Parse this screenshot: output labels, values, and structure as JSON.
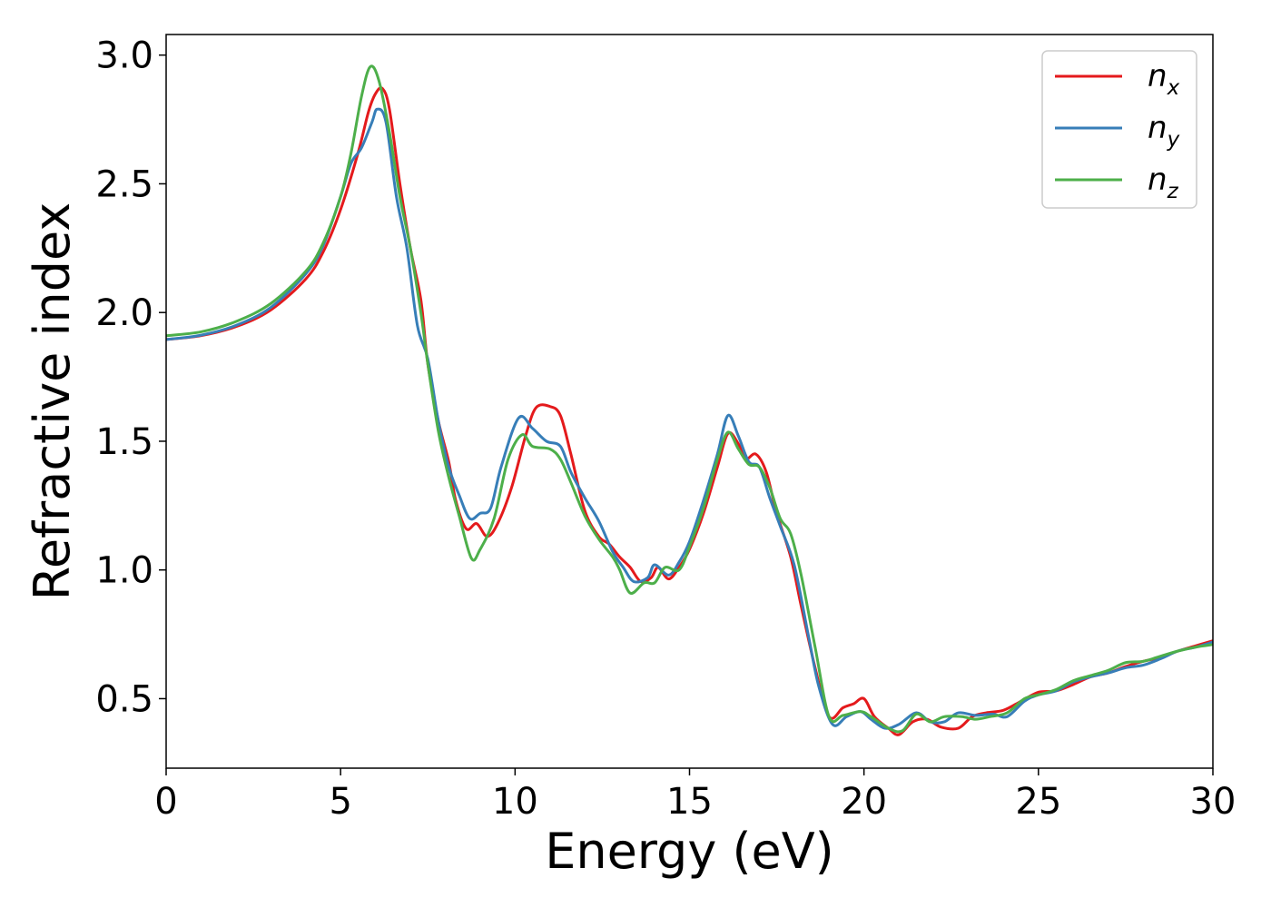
{
  "chart_data": {
    "type": "line",
    "title": "",
    "xlabel": "Energy (eV)",
    "ylabel": "Refractive index",
    "xlim": [
      0,
      30
    ],
    "ylim": [
      0.23,
      3.08
    ],
    "xticks": [
      0,
      5,
      10,
      15,
      20,
      25,
      30
    ],
    "xtick_labels": [
      "0",
      "5",
      "10",
      "15",
      "20",
      "25",
      "30"
    ],
    "yticks": [
      0.5,
      1.0,
      1.5,
      2.0,
      2.5,
      3.0
    ],
    "ytick_labels": [
      "0.5",
      "1.0",
      "1.5",
      "2.0",
      "2.5",
      "3.0"
    ],
    "grid": false,
    "legend_position": "top-right",
    "series": [
      {
        "name": "n_x",
        "legend_base": "n",
        "legend_sub": "x",
        "color": "#e41a1c",
        "points": [
          [
            0,
            1.895
          ],
          [
            1,
            1.91
          ],
          [
            2,
            1.945
          ],
          [
            3,
            2.01
          ],
          [
            4,
            2.13
          ],
          [
            4.5,
            2.235
          ],
          [
            5,
            2.4
          ],
          [
            5.5,
            2.62
          ],
          [
            5.8,
            2.78
          ],
          [
            6.0,
            2.85
          ],
          [
            6.2,
            2.87
          ],
          [
            6.4,
            2.79
          ],
          [
            6.7,
            2.5
          ],
          [
            7.0,
            2.25
          ],
          [
            7.3,
            2.05
          ],
          [
            7.5,
            1.8
          ],
          [
            7.8,
            1.58
          ],
          [
            8.1,
            1.42
          ],
          [
            8.3,
            1.27
          ],
          [
            8.6,
            1.16
          ],
          [
            8.9,
            1.18
          ],
          [
            9.2,
            1.13
          ],
          [
            9.5,
            1.18
          ],
          [
            9.9,
            1.32
          ],
          [
            10.3,
            1.52
          ],
          [
            10.6,
            1.63
          ],
          [
            11.0,
            1.635
          ],
          [
            11.3,
            1.6
          ],
          [
            11.6,
            1.45
          ],
          [
            12.0,
            1.23
          ],
          [
            12.4,
            1.13
          ],
          [
            12.7,
            1.1
          ],
          [
            13.0,
            1.05
          ],
          [
            13.3,
            1.01
          ],
          [
            13.6,
            0.955
          ],
          [
            13.9,
            0.97
          ],
          [
            14.1,
            1.01
          ],
          [
            14.4,
            0.965
          ],
          [
            14.7,
            1.01
          ],
          [
            15.0,
            1.08
          ],
          [
            15.4,
            1.22
          ],
          [
            15.8,
            1.4
          ],
          [
            16.1,
            1.53
          ],
          [
            16.4,
            1.49
          ],
          [
            16.6,
            1.43
          ],
          [
            16.9,
            1.45
          ],
          [
            17.2,
            1.38
          ],
          [
            17.5,
            1.22
          ],
          [
            17.9,
            1.05
          ],
          [
            18.2,
            0.86
          ],
          [
            18.6,
            0.62
          ],
          [
            19.0,
            0.43
          ],
          [
            19.4,
            0.465
          ],
          [
            19.7,
            0.48
          ],
          [
            20.0,
            0.5
          ],
          [
            20.3,
            0.43
          ],
          [
            20.7,
            0.385
          ],
          [
            21.0,
            0.36
          ],
          [
            21.4,
            0.41
          ],
          [
            21.8,
            0.42
          ],
          [
            22.2,
            0.39
          ],
          [
            22.7,
            0.385
          ],
          [
            23.1,
            0.43
          ],
          [
            23.5,
            0.445
          ],
          [
            24.0,
            0.455
          ],
          [
            24.5,
            0.49
          ],
          [
            25.0,
            0.525
          ],
          [
            25.5,
            0.53
          ],
          [
            26.0,
            0.555
          ],
          [
            26.5,
            0.585
          ],
          [
            27.0,
            0.6
          ],
          [
            27.5,
            0.625
          ],
          [
            28.0,
            0.645
          ],
          [
            28.5,
            0.66
          ],
          [
            29.0,
            0.685
          ],
          [
            29.5,
            0.705
          ],
          [
            30.0,
            0.725
          ]
        ]
      },
      {
        "name": "n_y",
        "legend_base": "n",
        "legend_sub": "y",
        "color": "#377eb8",
        "points": [
          [
            0,
            1.895
          ],
          [
            1,
            1.912
          ],
          [
            2,
            1.95
          ],
          [
            3,
            2.02
          ],
          [
            4,
            2.15
          ],
          [
            4.5,
            2.26
          ],
          [
            5,
            2.45
          ],
          [
            5.3,
            2.58
          ],
          [
            5.6,
            2.64
          ],
          [
            5.9,
            2.74
          ],
          [
            6.05,
            2.79
          ],
          [
            6.3,
            2.74
          ],
          [
            6.6,
            2.45
          ],
          [
            6.9,
            2.25
          ],
          [
            7.2,
            1.95
          ],
          [
            7.5,
            1.82
          ],
          [
            7.8,
            1.58
          ],
          [
            8.1,
            1.4
          ],
          [
            8.4,
            1.29
          ],
          [
            8.7,
            1.2
          ],
          [
            9.0,
            1.22
          ],
          [
            9.3,
            1.24
          ],
          [
            9.6,
            1.4
          ],
          [
            10.1,
            1.59
          ],
          [
            10.5,
            1.55
          ],
          [
            10.9,
            1.5
          ],
          [
            11.3,
            1.48
          ],
          [
            11.6,
            1.38
          ],
          [
            12.0,
            1.28
          ],
          [
            12.4,
            1.19
          ],
          [
            12.8,
            1.07
          ],
          [
            13.1,
            1.01
          ],
          [
            13.4,
            0.955
          ],
          [
            13.8,
            0.97
          ],
          [
            14.0,
            1.02
          ],
          [
            14.4,
            0.98
          ],
          [
            14.7,
            1.03
          ],
          [
            15.0,
            1.11
          ],
          [
            15.4,
            1.27
          ],
          [
            15.8,
            1.45
          ],
          [
            16.1,
            1.6
          ],
          [
            16.4,
            1.52
          ],
          [
            16.7,
            1.42
          ],
          [
            17.0,
            1.4
          ],
          [
            17.3,
            1.28
          ],
          [
            17.6,
            1.17
          ],
          [
            18.0,
            1.02
          ],
          [
            18.4,
            0.75
          ],
          [
            18.7,
            0.55
          ],
          [
            19.1,
            0.4
          ],
          [
            19.5,
            0.43
          ],
          [
            19.9,
            0.45
          ],
          [
            20.2,
            0.42
          ],
          [
            20.6,
            0.385
          ],
          [
            21.0,
            0.4
          ],
          [
            21.5,
            0.445
          ],
          [
            21.9,
            0.41
          ],
          [
            22.3,
            0.41
          ],
          [
            22.7,
            0.445
          ],
          [
            23.2,
            0.435
          ],
          [
            23.7,
            0.44
          ],
          [
            24.1,
            0.43
          ],
          [
            24.6,
            0.49
          ],
          [
            25.0,
            0.515
          ],
          [
            25.5,
            0.53
          ],
          [
            26.0,
            0.565
          ],
          [
            26.5,
            0.585
          ],
          [
            27.0,
            0.6
          ],
          [
            27.5,
            0.62
          ],
          [
            28.0,
            0.63
          ],
          [
            28.5,
            0.655
          ],
          [
            29.0,
            0.685
          ],
          [
            29.5,
            0.7
          ],
          [
            30.0,
            0.72
          ]
        ]
      },
      {
        "name": "n_z",
        "legend_base": "n",
        "legend_sub": "z",
        "color": "#4daf4a",
        "points": [
          [
            0,
            1.91
          ],
          [
            1,
            1.925
          ],
          [
            2,
            1.965
          ],
          [
            3,
            2.035
          ],
          [
            4,
            2.16
          ],
          [
            4.5,
            2.27
          ],
          [
            5,
            2.45
          ],
          [
            5.3,
            2.62
          ],
          [
            5.6,
            2.84
          ],
          [
            5.85,
            2.955
          ],
          [
            6.1,
            2.9
          ],
          [
            6.4,
            2.7
          ],
          [
            6.7,
            2.45
          ],
          [
            7.0,
            2.25
          ],
          [
            7.3,
            2.0
          ],
          [
            7.5,
            1.8
          ],
          [
            7.8,
            1.54
          ],
          [
            8.1,
            1.36
          ],
          [
            8.4,
            1.21
          ],
          [
            8.75,
            1.045
          ],
          [
            9.0,
            1.08
          ],
          [
            9.4,
            1.2
          ],
          [
            9.8,
            1.43
          ],
          [
            10.2,
            1.525
          ],
          [
            10.5,
            1.48
          ],
          [
            11.0,
            1.47
          ],
          [
            11.3,
            1.43
          ],
          [
            11.6,
            1.34
          ],
          [
            12.0,
            1.21
          ],
          [
            12.4,
            1.12
          ],
          [
            12.8,
            1.05
          ],
          [
            13.0,
            1.0
          ],
          [
            13.3,
            0.91
          ],
          [
            13.7,
            0.95
          ],
          [
            14.0,
            0.95
          ],
          [
            14.3,
            1.01
          ],
          [
            14.7,
            1.0
          ],
          [
            15.0,
            1.09
          ],
          [
            15.4,
            1.24
          ],
          [
            15.8,
            1.43
          ],
          [
            16.1,
            1.535
          ],
          [
            16.4,
            1.47
          ],
          [
            16.7,
            1.41
          ],
          [
            17.0,
            1.4
          ],
          [
            17.3,
            1.32
          ],
          [
            17.6,
            1.2
          ],
          [
            17.9,
            1.14
          ],
          [
            18.2,
            0.98
          ],
          [
            18.6,
            0.7
          ],
          [
            19.0,
            0.43
          ],
          [
            19.4,
            0.435
          ],
          [
            19.9,
            0.45
          ],
          [
            20.2,
            0.43
          ],
          [
            20.7,
            0.385
          ],
          [
            21.1,
            0.375
          ],
          [
            21.5,
            0.44
          ],
          [
            21.9,
            0.41
          ],
          [
            22.3,
            0.43
          ],
          [
            22.8,
            0.43
          ],
          [
            23.2,
            0.42
          ],
          [
            23.6,
            0.43
          ],
          [
            24.1,
            0.445
          ],
          [
            24.6,
            0.5
          ],
          [
            25.0,
            0.515
          ],
          [
            25.5,
            0.535
          ],
          [
            26.0,
            0.57
          ],
          [
            26.5,
            0.59
          ],
          [
            27.0,
            0.61
          ],
          [
            27.5,
            0.64
          ],
          [
            28.0,
            0.645
          ],
          [
            28.5,
            0.665
          ],
          [
            29.0,
            0.685
          ],
          [
            29.5,
            0.7
          ],
          [
            30.0,
            0.71
          ]
        ]
      }
    ]
  }
}
